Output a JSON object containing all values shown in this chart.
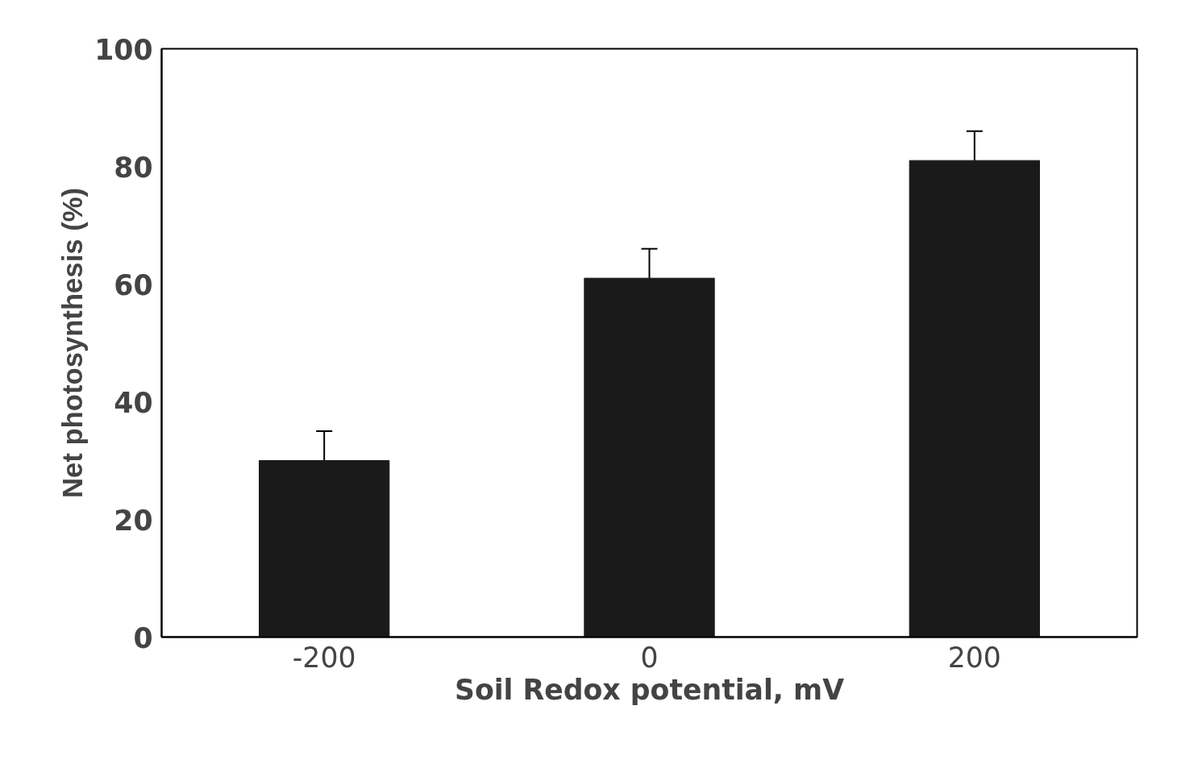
{
  "chart_data": {
    "type": "bar",
    "xlabel": "Soil Redox potential, mV",
    "ylabel": "Net photosynthesis (%)",
    "categories": [
      "-200",
      "0",
      "200"
    ],
    "values": [
      30,
      61,
      81
    ],
    "errors": [
      5,
      5,
      5
    ],
    "color": "#1a1a1a",
    "ylim": [
      0,
      100
    ],
    "yticks": [
      0,
      20,
      40,
      60,
      80,
      100
    ],
    "grid": false
  }
}
